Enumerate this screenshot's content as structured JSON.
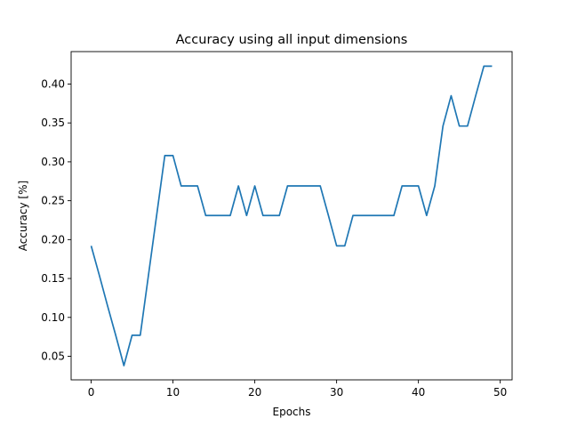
{
  "chart_data": {
    "type": "line",
    "title": "Accuracy using all input dimensions",
    "xlabel": "Epochs",
    "ylabel": "Accuracy [%]",
    "xlim": [
      -2.45,
      51.45
    ],
    "ylim": [
      0.0197,
      0.4417
    ],
    "xticks": [
      0,
      10,
      20,
      30,
      40,
      50
    ],
    "xtick_labels": [
      "0",
      "10",
      "20",
      "30",
      "40",
      "50"
    ],
    "yticks": [
      0.05,
      0.1,
      0.15,
      0.2,
      0.25,
      0.3,
      0.35,
      0.4
    ],
    "ytick_labels": [
      "0.05",
      "0.10",
      "0.15",
      "0.20",
      "0.25",
      "0.30",
      "0.35",
      "0.40"
    ],
    "grid": false,
    "series": [
      {
        "color": "#1f77b4",
        "x": [
          0,
          1,
          2,
          3,
          4,
          5,
          6,
          7,
          8,
          9,
          10,
          11,
          12,
          13,
          14,
          15,
          16,
          17,
          18,
          19,
          20,
          21,
          22,
          23,
          24,
          25,
          26,
          27,
          28,
          29,
          30,
          31,
          32,
          33,
          34,
          35,
          36,
          37,
          38,
          39,
          40,
          41,
          42,
          43,
          44,
          45,
          46,
          47,
          48,
          49
        ],
        "y": [
          0.192,
          0.154,
          0.115,
          0.077,
          0.038,
          0.077,
          0.077,
          0.154,
          0.231,
          0.308,
          0.308,
          0.269,
          0.269,
          0.269,
          0.231,
          0.231,
          0.231,
          0.231,
          0.269,
          0.231,
          0.269,
          0.231,
          0.231,
          0.231,
          0.269,
          0.269,
          0.269,
          0.269,
          0.269,
          0.231,
          0.192,
          0.192,
          0.231,
          0.231,
          0.231,
          0.231,
          0.231,
          0.231,
          0.269,
          0.269,
          0.269,
          0.231,
          0.269,
          0.346,
          0.385,
          0.346,
          0.346,
          0.385,
          0.423,
          0.423
        ]
      }
    ]
  }
}
